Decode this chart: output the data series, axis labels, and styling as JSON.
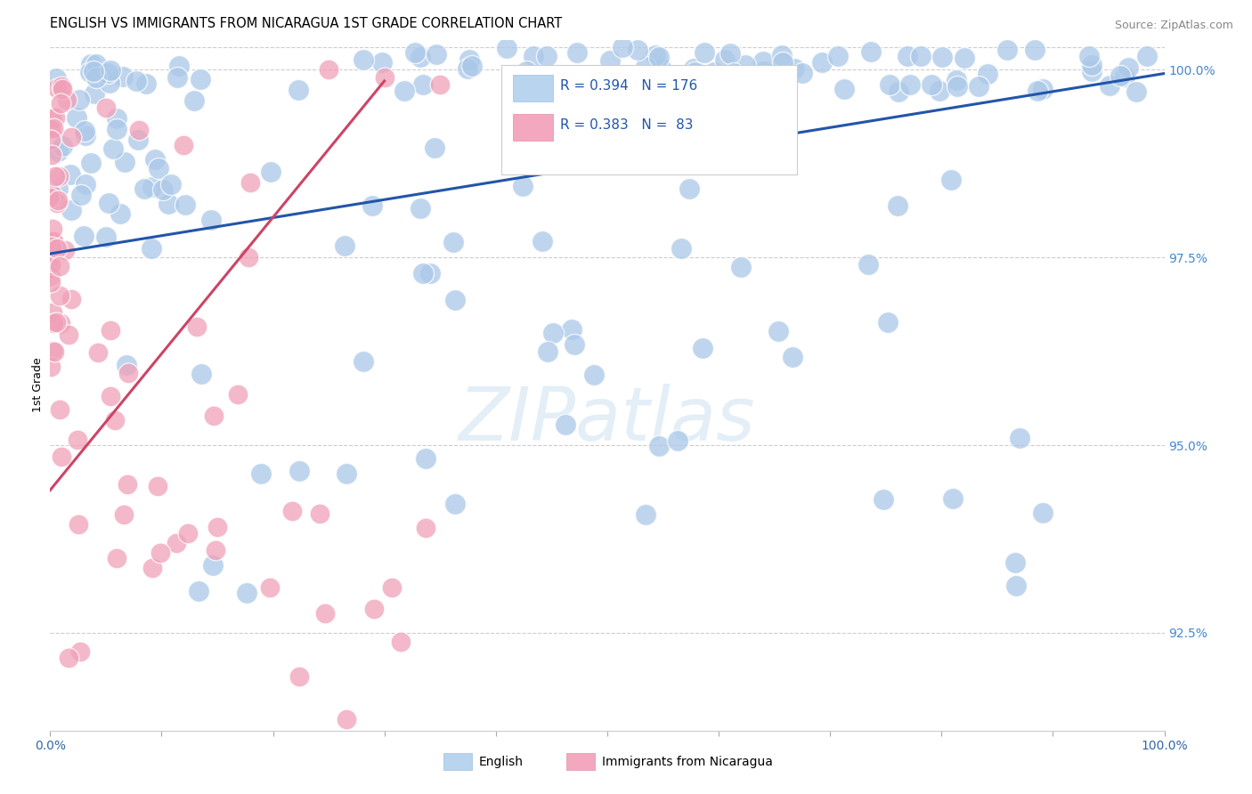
{
  "title": "ENGLISH VS IMMIGRANTS FROM NICARAGUA 1ST GRADE CORRELATION CHART",
  "source": "Source: ZipAtlas.com",
  "ylabel": "1st Grade",
  "watermark": "ZIPatlas",
  "legend_blue_r": "R = 0.394",
  "legend_blue_n": "N = 176",
  "legend_pink_r": "R = 0.383",
  "legend_pink_n": "N =  83",
  "blue_color": "#aac8e8",
  "pink_color": "#f0a0b8",
  "line_blue_color": "#2255aa",
  "line_pink_color": "#cc4466",
  "right_axis_color": "#4488cc",
  "xlim": [
    0.0,
    1.0
  ],
  "ylim": [
    0.912,
    1.004
  ],
  "right_yticks": [
    0.925,
    0.95,
    0.975,
    1.0
  ],
  "right_yticklabels": [
    "92.5%",
    "95.0%",
    "97.5%",
    "100.0%"
  ],
  "background_color": "#ffffff",
  "title_fontsize": 10.5,
  "axis_label_fontsize": 9,
  "blue_line_x": [
    0.0,
    1.0
  ],
  "blue_line_y": [
    0.9755,
    0.9995
  ],
  "pink_line_x": [
    0.0,
    0.3
  ],
  "pink_line_y": [
    0.944,
    0.9985
  ]
}
